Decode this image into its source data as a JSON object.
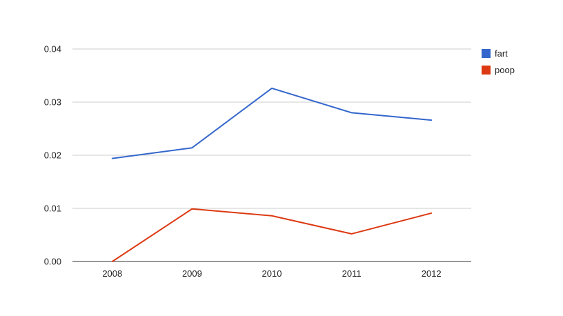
{
  "chart_data": {
    "type": "line",
    "categories": [
      "2008",
      "2009",
      "2010",
      "2011",
      "2012"
    ],
    "series": [
      {
        "name": "fart",
        "color": "#3366cc",
        "values": [
          0.0194,
          0.0214,
          0.0326,
          0.028,
          0.0266
        ]
      },
      {
        "name": "poop",
        "color": "#dc3912",
        "values": [
          0.0,
          0.0099,
          0.0086,
          0.0052,
          0.0091
        ]
      }
    ],
    "ylim": [
      0,
      0.04
    ],
    "yticks": [
      "0.00",
      "0.01",
      "0.02",
      "0.03",
      "0.04"
    ],
    "grid": true,
    "legend": "right"
  }
}
